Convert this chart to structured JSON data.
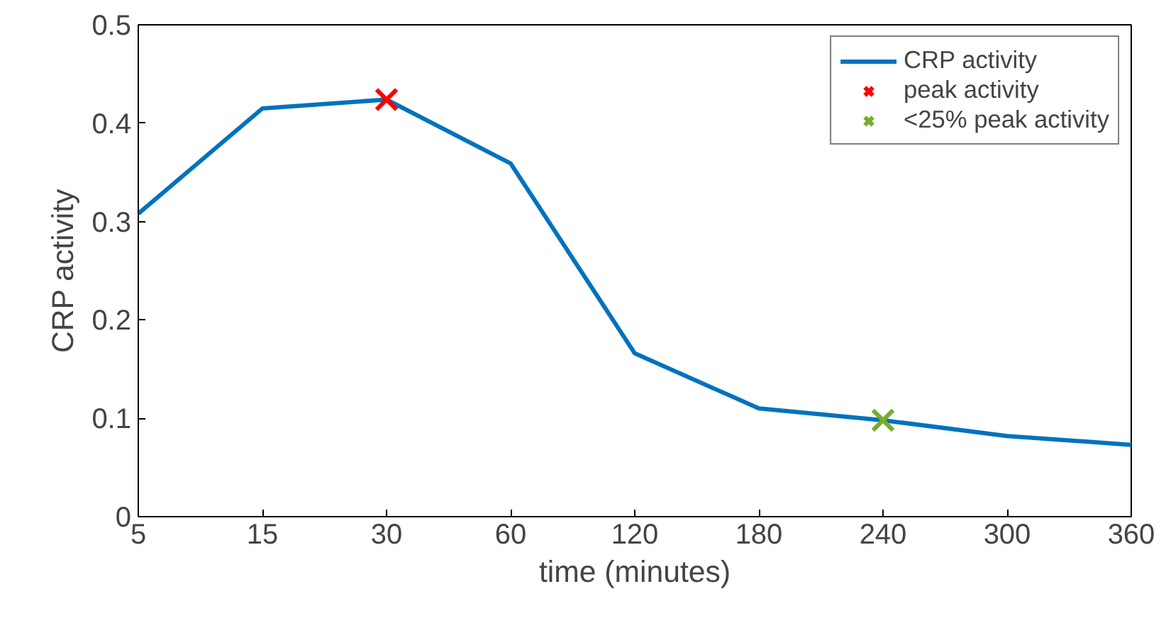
{
  "chart_data": {
    "type": "line",
    "xlabel": "time (minutes)",
    "ylabel": "CRP activity",
    "categories": [
      "5",
      "15",
      "30",
      "60",
      "120",
      "180",
      "240",
      "300",
      "360"
    ],
    "ylim": [
      0,
      0.5
    ],
    "yticks": [
      0,
      0.1,
      0.2,
      0.3,
      0.4,
      0.5
    ],
    "grid": false,
    "legend": "top right",
    "marker": "none",
    "line_style": "solid",
    "series": [
      {
        "name": "CRP activity",
        "color": "#0072bd",
        "values": [
          0.308,
          0.415,
          0.424,
          0.359,
          0.166,
          0.11,
          0.098,
          0.082,
          0.073
        ]
      },
      {
        "name": "peak activity",
        "type": "scatter",
        "marker": "cross",
        "color": "#ff0000",
        "x": [
          "30"
        ],
        "values": [
          0.424
        ]
      },
      {
        "name": "<25% peak activity",
        "type": "scatter",
        "marker": "cross",
        "color": "#77ac30",
        "x": [
          "240"
        ],
        "values": [
          0.098
        ]
      }
    ]
  }
}
